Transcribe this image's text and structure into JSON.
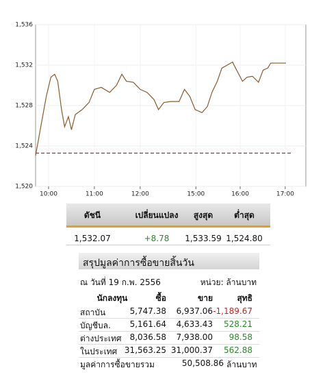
{
  "chart_data": {
    "type": "line",
    "x": [
      -17,
      -3,
      3,
      8,
      12,
      17,
      21,
      26,
      30,
      35,
      44,
      53,
      60,
      69,
      80,
      89,
      96,
      102,
      111,
      120,
      129,
      138,
      144,
      151,
      160,
      171,
      178,
      185,
      192,
      201,
      208,
      214,
      221,
      227,
      234,
      241,
      245,
      254,
      260,
      267,
      275,
      281,
      287,
      291,
      311
    ],
    "values": [
      1523.05,
      1528.9,
      1530.8,
      1531.1,
      1530.4,
      1527.6,
      1525.9,
      1526.9,
      1525.6,
      1527.1,
      1527.6,
      1528.3,
      1529.6,
      1529.8,
      1529.3,
      1530.0,
      1531.1,
      1530.4,
      1530.3,
      1529.6,
      1529.3,
      1528.6,
      1527.6,
      1528.3,
      1528.4,
      1528.4,
      1529.6,
      1528.9,
      1527.6,
      1527.3,
      1527.9,
      1529.3,
      1530.4,
      1531.7,
      1532.0,
      1532.3,
      1531.7,
      1530.4,
      1530.8,
      1530.9,
      1530.3,
      1531.5,
      1531.7,
      1532.2,
      1532.2
    ],
    "color": "#8b5a2b",
    "reference_line": 1523.3,
    "reference_color": "#800040",
    "xlim": [
      -17,
      337
    ],
    "xticks": [
      {
        "value": 0,
        "label": "10:00"
      },
      {
        "value": 60,
        "label": "11:00"
      },
      {
        "value": 120,
        "label": "12:00"
      },
      {
        "value": 193,
        "label": "15:00"
      },
      {
        "value": 251,
        "label": "16:00"
      },
      {
        "value": 310,
        "label": "17:00"
      }
    ],
    "ylim": [
      1520,
      1536
    ],
    "yticks": [
      {
        "value": 1520,
        "label": "1,520"
      },
      {
        "value": 1524,
        "label": "1,524"
      },
      {
        "value": 1528,
        "label": "1,528"
      },
      {
        "value": 1532,
        "label": "1,532"
      },
      {
        "value": 1536,
        "label": "1,536"
      }
    ],
    "grid": true
  },
  "index_table": {
    "headers": [
      "ดัชนี",
      "เปลี่ยนแปลง",
      "สูงสุด",
      "ต่ำสุด"
    ],
    "row": [
      "1,532.07",
      "+8.78",
      "1,533.59",
      "1,524.80"
    ]
  },
  "summary": {
    "title": "สรุปมูลค่าการซื้อขายสิ้นวัน",
    "date": "ณ วันที่ 19 ก.พ. 2556",
    "unit": "หน่วย: ล้านบาท",
    "headers": [
      "นักลงทุน",
      "ซื้อ",
      "ขาย",
      "สุทธิ"
    ],
    "rows": [
      [
        "สถาบัน",
        "5,747.38",
        "6,937.06",
        "-1,189.67"
      ],
      [
        "บัญชีบล.",
        "5,161.64",
        "4,633.43",
        "528.21"
      ],
      [
        "ต่างประเทศ",
        "8,036.58",
        "7,938.00",
        "98.58"
      ],
      [
        "ในประเทศ",
        "31,563.25",
        "31,000.37",
        "562.88"
      ]
    ],
    "total_label": "มูลค่าการซื้อขายรวม",
    "total_value": "50,508.86",
    "total_unit": "ล้านบาท"
  }
}
